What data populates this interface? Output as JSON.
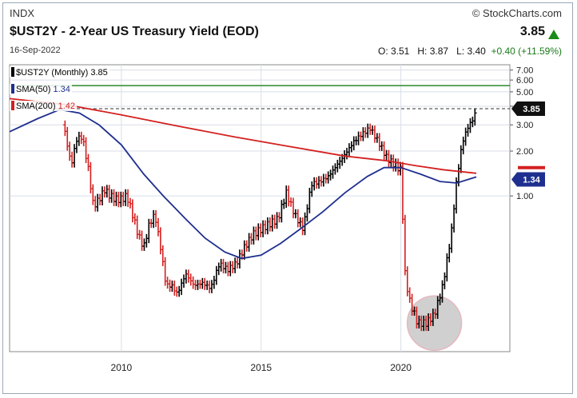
{
  "header": {
    "symbol": "INDX",
    "title": "$UST2Y - 2-Year US Treasury Yield (EOD)",
    "date": "16-Sep-2022",
    "credit": "© StockCharts.com",
    "last_price": "3.85",
    "open_label": "O:",
    "open": "3.51",
    "high_label": "H:",
    "high": "3.87",
    "low_label": "L:",
    "low": "3.40",
    "change": "+0.40 (+11.59%)"
  },
  "legend": [
    {
      "label": "$UST2Y (Monthly) 3.85",
      "color": "#000000"
    },
    {
      "label": "SMA(50)",
      "value": "1.34",
      "color": "#1f2f8f"
    },
    {
      "label": "SMA(200)",
      "value": "1.42",
      "color": "#d42020"
    }
  ],
  "tags": {
    "price": "3.85",
    "sma50": "1.34"
  },
  "colors": {
    "up": "#000000",
    "down": "#d42020",
    "sma50": "#1f2f8f",
    "sma200": "#d42020",
    "hline": "#2a8a2a"
  },
  "chart_data": {
    "type": "ohlc-monthly",
    "y_scale": "log",
    "ylim": [
      0.09,
      7.6
    ],
    "y_ticks": [
      "7.00",
      "6.00",
      "5.00",
      "4.00",
      "3.00",
      "2.00",
      "1.00"
    ],
    "x_ticks": [
      "2010",
      "2015",
      "2020"
    ],
    "xlim": [
      2006.0,
      2023.9
    ],
    "reference_line": 5.5,
    "dashed_line": 3.85,
    "price_series": [
      [
        2007.9,
        3.0
      ],
      [
        2008.0,
        2.6
      ],
      [
        2008.2,
        1.6
      ],
      [
        2008.4,
        2.4
      ],
      [
        2008.6,
        2.5
      ],
      [
        2008.8,
        1.6
      ],
      [
        2009.0,
        0.85
      ],
      [
        2009.2,
        0.95
      ],
      [
        2009.4,
        1.1
      ],
      [
        2009.6,
        1.0
      ],
      [
        2009.8,
        0.95
      ],
      [
        2010.0,
        0.95
      ],
      [
        2010.2,
        1.0
      ],
      [
        2010.4,
        0.75
      ],
      [
        2010.6,
        0.55
      ],
      [
        2010.8,
        0.45
      ],
      [
        2011.0,
        0.65
      ],
      [
        2011.2,
        0.75
      ],
      [
        2011.4,
        0.45
      ],
      [
        2011.6,
        0.25
      ],
      [
        2011.8,
        0.25
      ],
      [
        2012.0,
        0.22
      ],
      [
        2012.3,
        0.3
      ],
      [
        2012.6,
        0.25
      ],
      [
        2012.9,
        0.26
      ],
      [
        2013.2,
        0.24
      ],
      [
        2013.5,
        0.35
      ],
      [
        2013.8,
        0.32
      ],
      [
        2014.1,
        0.35
      ],
      [
        2014.4,
        0.45
      ],
      [
        2014.7,
        0.55
      ],
      [
        2015.0,
        0.6
      ],
      [
        2015.3,
        0.65
      ],
      [
        2015.6,
        0.7
      ],
      [
        2015.9,
        1.05
      ],
      [
        2016.2,
        0.75
      ],
      [
        2016.5,
        0.6
      ],
      [
        2016.8,
        1.2
      ],
      [
        2017.1,
        1.25
      ],
      [
        2017.4,
        1.35
      ],
      [
        2017.7,
        1.6
      ],
      [
        2018.0,
        1.9
      ],
      [
        2018.3,
        2.3
      ],
      [
        2018.6,
        2.6
      ],
      [
        2018.9,
        2.85
      ],
      [
        2019.2,
        2.3
      ],
      [
        2019.5,
        1.8
      ],
      [
        2019.8,
        1.6
      ],
      [
        2020.0,
        1.5
      ],
      [
        2020.15,
        0.3
      ],
      [
        2020.3,
        0.2
      ],
      [
        2020.6,
        0.14
      ],
      [
        2020.9,
        0.14
      ],
      [
        2021.2,
        0.16
      ],
      [
        2021.5,
        0.25
      ],
      [
        2021.8,
        0.55
      ],
      [
        2022.0,
        1.3
      ],
      [
        2022.2,
        2.3
      ],
      [
        2022.4,
        2.9
      ],
      [
        2022.6,
        3.3
      ],
      [
        2022.7,
        3.85
      ]
    ],
    "sma50": [
      [
        2006.0,
        2.7
      ],
      [
        2007.0,
        3.3
      ],
      [
        2007.8,
        3.8
      ],
      [
        2008.5,
        3.6
      ],
      [
        2009.2,
        3.0
      ],
      [
        2010.0,
        2.2
      ],
      [
        2010.8,
        1.4
      ],
      [
        2011.5,
        1.0
      ],
      [
        2012.3,
        0.7
      ],
      [
        2013.0,
        0.52
      ],
      [
        2013.7,
        0.42
      ],
      [
        2014.3,
        0.38
      ],
      [
        2015.0,
        0.4
      ],
      [
        2015.7,
        0.48
      ],
      [
        2016.4,
        0.6
      ],
      [
        2017.2,
        0.78
      ],
      [
        2018.0,
        1.05
      ],
      [
        2018.8,
        1.35
      ],
      [
        2019.4,
        1.55
      ],
      [
        2020.0,
        1.55
      ],
      [
        2020.7,
        1.4
      ],
      [
        2021.4,
        1.25
      ],
      [
        2022.0,
        1.22
      ],
      [
        2022.7,
        1.34
      ]
    ],
    "sma200": [
      [
        2006.0,
        4.5
      ],
      [
        2008.0,
        4.1
      ],
      [
        2010.0,
        3.5
      ],
      [
        2012.0,
        2.95
      ],
      [
        2014.0,
        2.5
      ],
      [
        2016.0,
        2.15
      ],
      [
        2018.0,
        1.85
      ],
      [
        2019.5,
        1.72
      ],
      [
        2020.5,
        1.6
      ],
      [
        2021.5,
        1.5
      ],
      [
        2022.7,
        1.42
      ]
    ]
  },
  "annotation": {
    "highlight_circle": "2020-2021 lows"
  }
}
